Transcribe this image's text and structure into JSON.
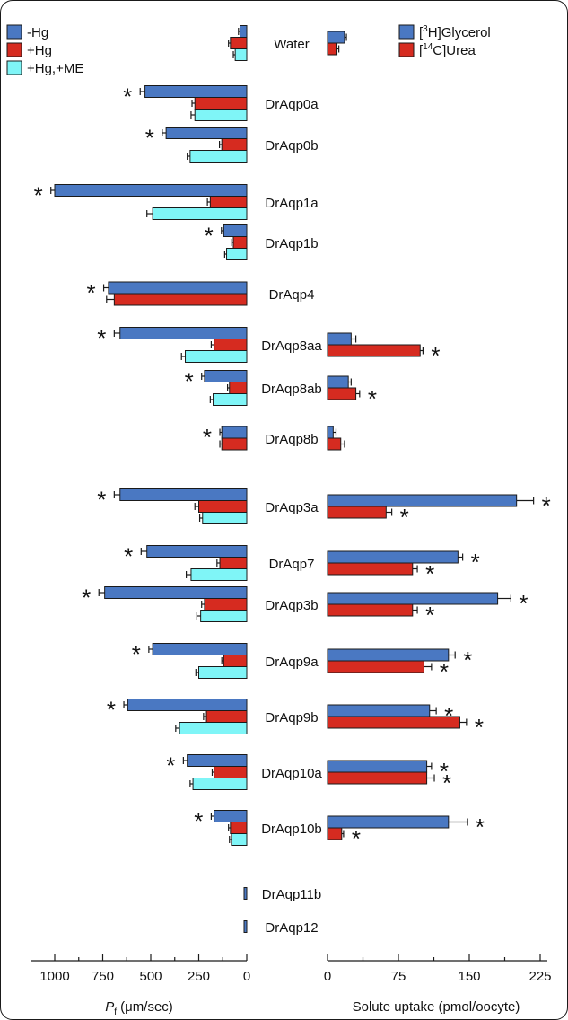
{
  "colors": {
    "minus_hg": "#4a78c2",
    "plus_hg": "#d62b20",
    "plus_hg_me": "#7ff5f7",
    "glycerol": "#4a78c2",
    "urea": "#d62b20",
    "stroke": "#1a1a1a"
  },
  "chart_data": [
    {
      "type": "bar",
      "orientation": "horizontal",
      "xlabel_prefix": "P",
      "xlabel_sub": "f",
      "xlabel_unit": " (μm/sec)",
      "xlim": [
        1000,
        0
      ],
      "x_axis_reversed": true,
      "xticks": [
        1000,
        750,
        500,
        250,
        0
      ],
      "legend": [
        "-Hg",
        "+Hg",
        "+Hg,+ME"
      ],
      "legend_position": "top-left",
      "categories": [
        "Water",
        "DrAqp0a",
        "DrAqp0b",
        "DrAqp1a",
        "DrAqp1b",
        "DrAqp4",
        "DrAqp8aa",
        "DrAqp8ab",
        "DrAqp8b",
        "DrAqp3a",
        "DrAqp7",
        "DrAqp3b",
        "DrAqp9a",
        "DrAqp9b",
        "DrAqp10a",
        "DrAqp10b",
        "DrAqp11b",
        "DrAqp12"
      ],
      "series": [
        {
          "name": "-Hg",
          "values": [
            35,
            530,
            420,
            1000,
            120,
            720,
            660,
            220,
            130,
            660,
            520,
            740,
            490,
            620,
            310,
            170,
            10,
            10
          ],
          "errors": [
            8,
            25,
            20,
            20,
            12,
            25,
            30,
            15,
            10,
            30,
            30,
            30,
            20,
            20,
            20,
            15,
            4,
            4
          ]
        },
        {
          "name": "+Hg",
          "values": [
            85,
            270,
            130,
            190,
            70,
            690,
            170,
            90,
            130,
            250,
            140,
            220,
            120,
            210,
            170,
            85,
            null,
            null
          ],
          "errors": [
            10,
            15,
            12,
            15,
            8,
            40,
            15,
            10,
            10,
            20,
            15,
            15,
            10,
            15,
            10,
            10,
            null,
            null
          ]
        },
        {
          "name": "+Hg,+ME",
          "values": [
            60,
            270,
            295,
            490,
            105,
            null,
            320,
            175,
            null,
            230,
            290,
            240,
            250,
            350,
            280,
            80,
            null,
            null
          ],
          "errors": [
            10,
            20,
            15,
            30,
            10,
            null,
            20,
            15,
            null,
            15,
            25,
            20,
            15,
            20,
            15,
            10,
            null,
            null
          ]
        }
      ],
      "asterisks": {
        "-Hg": [
          "DrAqp0a",
          "DrAqp0b",
          "DrAqp1a",
          "DrAqp1b",
          "DrAqp4",
          "DrAqp8aa",
          "DrAqp8ab",
          "DrAqp8b",
          "DrAqp3a",
          "DrAqp7",
          "DrAqp3b",
          "DrAqp9a",
          "DrAqp9b",
          "DrAqp10a",
          "DrAqp10b"
        ]
      }
    },
    {
      "type": "bar",
      "orientation": "horizontal",
      "xlabel": "Solute uptake (pmol/oocyte)",
      "xlim": [
        0,
        225
      ],
      "xticks": [
        0,
        75,
        150,
        225
      ],
      "legend_position": "top-right",
      "legend": [
        {
          "pre": "[",
          "sup": "3",
          "post": "H]Glycerol",
          "color_key": "glycerol"
        },
        {
          "pre": "[",
          "sup": "14",
          "post": "C]Urea",
          "color_key": "urea"
        }
      ],
      "categories": [
        "Water",
        "DrAqp8aa",
        "DrAqp8ab",
        "DrAqp8b",
        "DrAqp3a",
        "DrAqp7",
        "DrAqp3b",
        "DrAqp9a",
        "DrAqp9b",
        "DrAqp10a",
        "DrAqp10b"
      ],
      "series": [
        {
          "name": "[3H]Glycerol",
          "values": [
            18,
            25,
            22,
            6,
            200,
            138,
            180,
            128,
            108,
            105,
            128
          ],
          "errors": [
            2,
            5,
            3,
            3,
            18,
            5,
            14,
            7,
            7,
            5,
            20
          ],
          "asterisks": [
            false,
            false,
            false,
            false,
            true,
            true,
            true,
            true,
            true,
            true,
            true
          ]
        },
        {
          "name": "[14C]Urea",
          "values": [
            10,
            98,
            30,
            14,
            62,
            90,
            90,
            102,
            140,
            105,
            15
          ],
          "errors": [
            2,
            3,
            4,
            4,
            6,
            5,
            5,
            8,
            7,
            8,
            2
          ],
          "asterisks": [
            false,
            true,
            true,
            false,
            true,
            true,
            true,
            true,
            true,
            true,
            true
          ]
        }
      ]
    }
  ]
}
